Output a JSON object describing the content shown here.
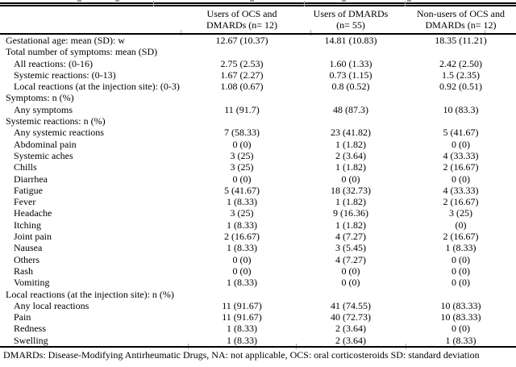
{
  "table": {
    "header": {
      "col1": {
        "line1": "Users of OCS and",
        "line2": "DMARDs (n= 12)"
      },
      "col2": {
        "line1": "Users of DMARDs",
        "line2": "(n= 55)"
      },
      "col3": {
        "line1": "Non-users of OCS and",
        "line2": "DMARDs (n= 12)"
      }
    },
    "rows": [
      {
        "label": "Gestational age: mean (SD): w",
        "indent": 0,
        "values": [
          "12.67 (10.37)",
          "14.81 (10.83)",
          "18.35 (11.21)"
        ]
      },
      {
        "label": "Total number of symptoms: mean (SD)",
        "indent": 0,
        "values": [
          "",
          "",
          ""
        ]
      },
      {
        "label": "All reactions: (0-16)",
        "indent": 1,
        "values": [
          "2.75 (2.53)",
          "1.60 (1.33)",
          "2.42 (2.50)"
        ]
      },
      {
        "label": "Systemic reactions: (0-13)",
        "indent": 1,
        "values": [
          "1.67 (2.27)",
          "0.73 (1.15)",
          "1.5 (2.35)"
        ]
      },
      {
        "label": "Local reactions (at the injection site): (0-3)",
        "indent": 1,
        "values": [
          "1.08 (0.67)",
          "0.8 (0.52)",
          "0.92 (0.51)"
        ]
      },
      {
        "label": "Symptoms: n (%)",
        "indent": 0,
        "values": [
          "",
          "",
          ""
        ]
      },
      {
        "label": "Any symptoms",
        "indent": 1,
        "values": [
          "11 (91.7)",
          "48 (87.3)",
          "10 (83.3)"
        ]
      },
      {
        "label": "Systemic reactions: n (%)",
        "indent": 0,
        "values": [
          "",
          "",
          ""
        ]
      },
      {
        "label": "Any systemic reactions",
        "indent": 1,
        "values": [
          "7 (58.33)",
          "23 (41.82)",
          "5 (41.67)"
        ]
      },
      {
        "label": "Abdominal pain",
        "indent": 1,
        "values": [
          "0 (0)",
          "1 (1.82)",
          "0 (0)"
        ]
      },
      {
        "label": "Systemic aches",
        "indent": 1,
        "values": [
          "3 (25)",
          "2 (3.64)",
          "4 (33.33)"
        ]
      },
      {
        "label": "Chills",
        "indent": 1,
        "values": [
          "3 (25)",
          "1 (1.82)",
          "2 (16.67)"
        ]
      },
      {
        "label": "Diarrhea",
        "indent": 1,
        "values": [
          "0 (0)",
          "0 (0)",
          "0 (0)"
        ]
      },
      {
        "label": "Fatigue",
        "indent": 1,
        "values": [
          "5 (41.67)",
          "18 (32.73)",
          "4 (33.33)"
        ]
      },
      {
        "label": "Fever",
        "indent": 1,
        "values": [
          "1 (8.33)",
          "1 (1.82)",
          "2 (16.67)"
        ]
      },
      {
        "label": "Headache",
        "indent": 1,
        "values": [
          "3 (25)",
          "9 (16.36)",
          "3 (25)"
        ]
      },
      {
        "label": "Itching",
        "indent": 1,
        "values": [
          "1 (8.33)",
          "1 (1.82)",
          "(0)"
        ]
      },
      {
        "label": "Joint pain",
        "indent": 1,
        "values": [
          "2 (16.67)",
          "4 (7.27)",
          "2 (16.67)"
        ]
      },
      {
        "label": "Nausea",
        "indent": 1,
        "values": [
          "1 (8.33)",
          "3 (5.45)",
          "1 (8.33)"
        ]
      },
      {
        "label": "Others",
        "indent": 1,
        "values": [
          "0 (0)",
          "4 (7.27)",
          "0 (0)"
        ]
      },
      {
        "label": "Rash",
        "indent": 1,
        "values": [
          "0 (0)",
          "0 (0)",
          "0 (0)"
        ]
      },
      {
        "label": "Vomiting",
        "indent": 1,
        "values": [
          "1 (8.33)",
          "0 (0)",
          "0 (0)"
        ]
      },
      {
        "label": "Local reactions (at the injection site): n (%)",
        "indent": 0,
        "values": [
          "",
          "",
          ""
        ]
      },
      {
        "label": "Any local reactions",
        "indent": 1,
        "values": [
          "11 (91.67)",
          "41 (74.55)",
          "10 (83.33)"
        ]
      },
      {
        "label": "Pain",
        "indent": 1,
        "values": [
          "11 (91.67)",
          "40 (72.73)",
          "10 (83.33)"
        ]
      },
      {
        "label": "Redness",
        "indent": 1,
        "values": [
          "1 (8.33)",
          "2 (3.64)",
          "0 (0)"
        ]
      },
      {
        "label": "Swelling",
        "indent": 1,
        "values": [
          "1 (8.33)",
          "2 (3.64)",
          "1 (8.33)"
        ]
      }
    ],
    "footnote": "DMARDs: Disease-Modifying Antirheumatic Drugs, NA: not applicable, OCS: oral corticosteroids SD: standard deviation"
  }
}
